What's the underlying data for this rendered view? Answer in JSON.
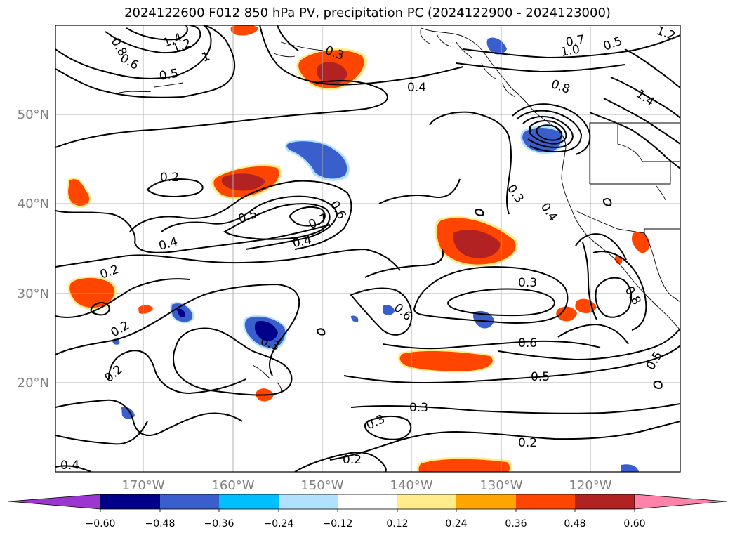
{
  "title": "2024122600 F012 850 hPa PV, precipitation PC (2024122900 - 2024123000)",
  "map": {
    "lat_labels": [
      "50°N",
      "40°N",
      "30°N",
      "20°N"
    ],
    "lon_labels": [
      "170°W",
      "160°W",
      "150°W",
      "140°W",
      "130°W",
      "120°W"
    ],
    "label_color": "#808080"
  },
  "colorbar": {
    "colors": [
      "#9b36d1",
      "#00008b",
      "#3a5fcd",
      "#00bfff",
      "#b0e2ff",
      "#ffffff",
      "#ffec8b",
      "#ffa500",
      "#ff4500",
      "#b22222",
      "#ff82ab"
    ],
    "tick_labels": [
      "−0.60",
      "−0.48",
      "−0.36",
      "−0.24",
      "−0.12",
      "0.12",
      "0.24",
      "0.36",
      "0.48",
      "0.60"
    ]
  },
  "contour_labels": [
    "1.4",
    "1.2",
    "1",
    "0.8",
    "0.6",
    "0.5",
    "0.4",
    "0.3",
    "0.2",
    "0.7",
    "1.0",
    "0.6",
    "0.4",
    "0.3",
    "0.2",
    "0.5",
    "0.8",
    "1.4",
    "0.3",
    "0.6",
    "0.5",
    "0.3",
    "0.2",
    "0.2",
    "0.2",
    "0.2",
    "0.4",
    "0.5",
    "0.7",
    "0.6",
    "0.4",
    "0.3",
    "0.8",
    "1.2",
    "0.5",
    "0.3",
    "0.4"
  ]
}
